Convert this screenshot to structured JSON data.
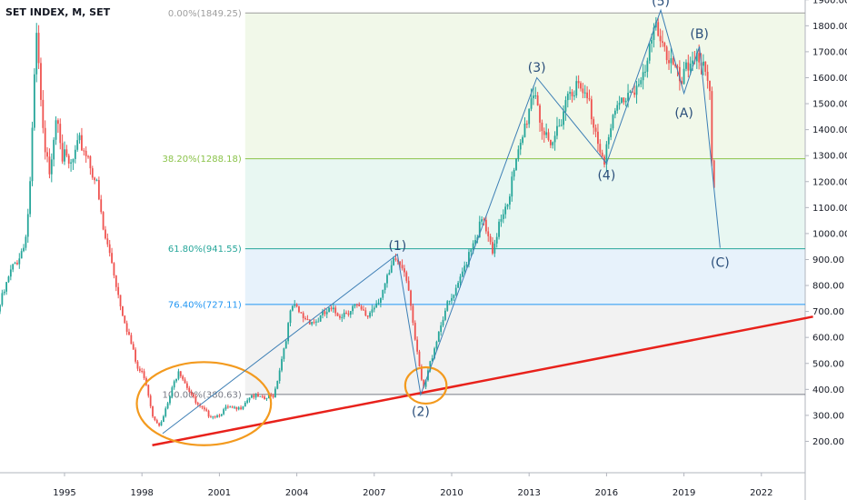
{
  "header": {
    "title": "SET INDEX, M, SET"
  },
  "colors": {
    "up": "#26a69a",
    "down": "#ef5350",
    "trendline": "#e8211b",
    "ellipse": "#f39a1e",
    "wave_line": "#3d7fb5",
    "wave_label": "#2a4e7a",
    "fib_0": "#9e9e9e",
    "fib_382": "#8bc34a",
    "fib_618": "#26a69a",
    "fib_764": "#2196f3",
    "fib_100": "#787b86"
  },
  "chart_data": {
    "type": "candlestick",
    "interval": "monthly",
    "x_tick_labels": [
      "1995",
      "1998",
      "2001",
      "2004",
      "2007",
      "2010",
      "2013",
      "2016",
      "2019",
      "2022"
    ],
    "x_tick_years": [
      1995,
      1998,
      2001,
      2004,
      2007,
      2010,
      2013,
      2016,
      2019,
      2022
    ],
    "y_tick_labels": [
      "200.00",
      "300.00",
      "400.00",
      "500.00",
      "600.00",
      "700.00",
      "800.00",
      "900.00",
      "1000.00",
      "1100.00",
      "1200.00",
      "1300.00",
      "1400.00",
      "1500.00",
      "1600.00",
      "1700.00",
      "1800.00",
      "1900.00"
    ],
    "y_range": [
      100,
      1950
    ],
    "x_range": [
      1992.5,
      2024.0
    ],
    "price_path": [
      [
        1992.5,
        700
      ],
      [
        1993.0,
        850
      ],
      [
        1993.5,
        950
      ],
      [
        1993.7,
        1100
      ],
      [
        1994.0,
        1750
      ],
      [
        1994.3,
        1300
      ],
      [
        1994.5,
        1250
      ],
      [
        1994.8,
        1500
      ],
      [
        1995.0,
        1300
      ],
      [
        1995.3,
        1250
      ],
      [
        1995.7,
        1350
      ],
      [
        1996.0,
        1300
      ],
      [
        1996.3,
        1200
      ],
      [
        1996.6,
        1000
      ],
      [
        1996.9,
        900
      ],
      [
        1997.2,
        750
      ],
      [
        1997.6,
        600
      ],
      [
        1997.9,
        480
      ],
      [
        1998.2,
        450
      ],
      [
        1998.5,
        300
      ],
      [
        1998.8,
        260
      ],
      [
        1999.1,
        350
      ],
      [
        1999.5,
        480
      ],
      [
        1999.8,
        420
      ],
      [
        2000.2,
        340
      ],
      [
        2000.7,
        300
      ],
      [
        2001.0,
        300
      ],
      [
        2001.4,
        330
      ],
      [
        2001.8,
        320
      ],
      [
        2002.3,
        380
      ],
      [
        2002.8,
        360
      ],
      [
        2003.2,
        380
      ],
      [
        2003.5,
        520
      ],
      [
        2003.9,
        720
      ],
      [
        2004.3,
        680
      ],
      [
        2004.8,
        660
      ],
      [
        2005.3,
        700
      ],
      [
        2005.8,
        690
      ],
      [
        2006.3,
        720
      ],
      [
        2006.8,
        680
      ],
      [
        2007.3,
        760
      ],
      [
        2007.6,
        820
      ],
      [
        2007.9,
        900
      ],
      [
        2008.3,
        860
      ],
      [
        2008.5,
        740
      ],
      [
        2008.7,
        560
      ],
      [
        2008.9,
        440
      ],
      [
        2009.0,
        400
      ],
      [
        2009.4,
        560
      ],
      [
        2009.8,
        700
      ],
      [
        2010.3,
        780
      ],
      [
        2010.8,
        950
      ],
      [
        2011.3,
        1050
      ],
      [
        2011.7,
        900
      ],
      [
        2011.9,
        1050
      ],
      [
        2012.3,
        1150
      ],
      [
        2012.8,
        1350
      ],
      [
        2013.1,
        1500
      ],
      [
        2013.3,
        1570
      ],
      [
        2013.6,
        1400
      ],
      [
        2013.9,
        1300
      ],
      [
        2014.3,
        1450
      ],
      [
        2014.7,
        1580
      ],
      [
        2015.0,
        1550
      ],
      [
        2015.4,
        1500
      ],
      [
        2015.8,
        1350
      ],
      [
        2016.0,
        1300
      ],
      [
        2016.5,
        1480
      ],
      [
        2017.0,
        1560
      ],
      [
        2017.5,
        1580
      ],
      [
        2017.9,
        1750
      ],
      [
        2018.0,
        1830
      ],
      [
        2018.4,
        1700
      ],
      [
        2018.8,
        1600
      ],
      [
        2019.0,
        1570
      ],
      [
        2019.3,
        1650
      ],
      [
        2019.6,
        1720
      ],
      [
        2019.9,
        1600
      ],
      [
        2020.1,
        1500
      ],
      [
        2020.2,
        1150
      ]
    ],
    "fib_levels": [
      {
        "label": "0.00%(1849.25)",
        "value": 1849.25,
        "color_key": "fib_0"
      },
      {
        "label": "38.20%(1288.18)",
        "value": 1288.18,
        "color_key": "fib_382"
      },
      {
        "label": "61.80%(941.55)",
        "value": 941.55,
        "color_key": "fib_618"
      },
      {
        "label": "76.40%(727.11)",
        "value": 727.11,
        "color_key": "fib_764"
      },
      {
        "label": "100.00%(380.63)",
        "value": 380.63,
        "color_key": "fib_100"
      }
    ],
    "fib_x_start": 2002.0,
    "fib_bands": [
      {
        "from": 1288.18,
        "to": 1849.25,
        "color": "#f1f8e9"
      },
      {
        "from": 941.55,
        "to": 1288.18,
        "color": "#e8f7f2"
      },
      {
        "from": 727.11,
        "to": 941.55,
        "color": "#e7f2fb"
      },
      {
        "from": 380.63,
        "to": 727.11,
        "color": "#f2f2f2"
      }
    ],
    "trendline": [
      [
        1998.4,
        185
      ],
      [
        2024.0,
        680
      ]
    ],
    "ellipses": [
      {
        "center": [
          2000.4,
          345
        ],
        "rx_years": 2.6,
        "ry_value": 160
      },
      {
        "center": [
          2009.0,
          415
        ],
        "rx_years": 0.8,
        "ry_value": 70
      }
    ],
    "wave_path": [
      [
        1998.8,
        230
      ],
      [
        2007.9,
        920
      ],
      [
        2008.8,
        380
      ],
      [
        2013.3,
        1600
      ],
      [
        2016.0,
        1270
      ],
      [
        2018.1,
        1860
      ],
      [
        2019.0,
        1540
      ],
      [
        2019.6,
        1720
      ],
      [
        2020.4,
        945
      ]
    ],
    "wave_labels": [
      {
        "text": "(1)",
        "x": 2007.9,
        "y": 955
      },
      {
        "text": "(2)",
        "x": 2008.8,
        "y": 315
      },
      {
        "text": "(3)",
        "x": 2013.3,
        "y": 1640
      },
      {
        "text": "(4)",
        "x": 2016.0,
        "y": 1225
      },
      {
        "text": "(5)",
        "x": 2018.1,
        "y": 1895
      },
      {
        "text": "(A)",
        "x": 2019.0,
        "y": 1465
      },
      {
        "text": "(B)",
        "x": 2019.6,
        "y": 1770
      },
      {
        "text": "(C)",
        "x": 2020.4,
        "y": 890
      }
    ]
  }
}
